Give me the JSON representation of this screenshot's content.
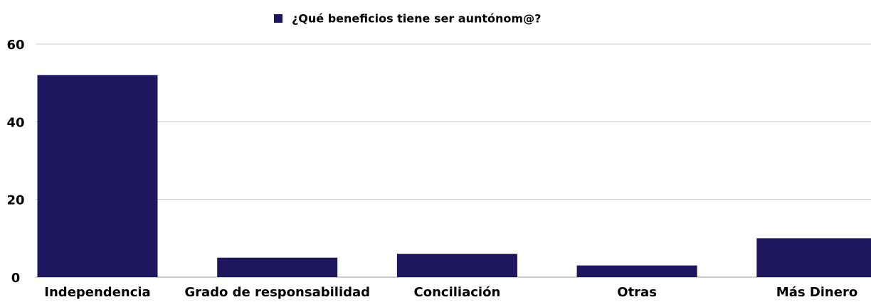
{
  "chart_data": {
    "type": "bar",
    "series": [
      {
        "name": "¿Qué beneficios tiene ser auntónom@?",
        "color": "#1f1660",
        "values": [
          52,
          5,
          6,
          3,
          10
        ]
      }
    ],
    "categories": [
      "Independencia",
      "Grado de responsabilidad",
      "Conciliación",
      "Otras",
      "Más Dinero"
    ],
    "ylim": [
      0,
      60
    ],
    "yticks": [
      0,
      20,
      40,
      60
    ],
    "grid": true,
    "legend": "top"
  }
}
